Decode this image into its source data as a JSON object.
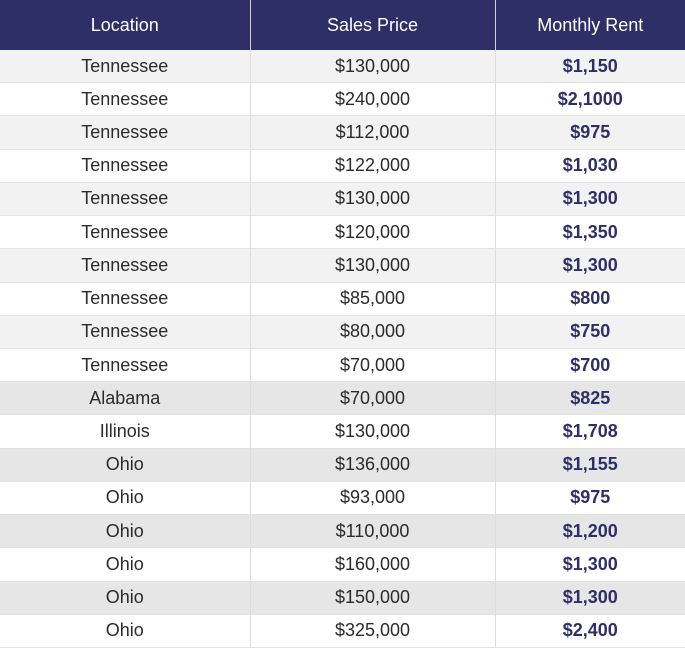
{
  "headers": [
    "Location",
    "Sales Price",
    "Monthly Rent"
  ],
  "rows": [
    {
      "location": "Tennessee",
      "price": "$130,000",
      "rent": "$1,150"
    },
    {
      "location": "Tennessee",
      "price": "$240,000",
      "rent": "$2,1000"
    },
    {
      "location": "Tennessee",
      "price": "$112,000",
      "rent": "$975"
    },
    {
      "location": "Tennessee",
      "price": "$122,000",
      "rent": "$1,030"
    },
    {
      "location": "Tennessee",
      "price": "$130,000",
      "rent": "$1,300"
    },
    {
      "location": "Tennessee",
      "price": "$120,000",
      "rent": "$1,350"
    },
    {
      "location": "Tennessee",
      "price": "$130,000",
      "rent": "$1,300"
    },
    {
      "location": "Tennessee",
      "price": "$85,000",
      "rent": "$800"
    },
    {
      "location": "Tennessee",
      "price": "$80,000",
      "rent": "$750"
    },
    {
      "location": "Tennessee",
      "price": "$70,000",
      "rent": "$700"
    },
    {
      "location": "Alabama",
      "price": "$70,000",
      "rent": "$825"
    },
    {
      "location": "Illinois",
      "price": "$130,000",
      "rent": "$1,708"
    },
    {
      "location": "Ohio",
      "price": "$136,000",
      "rent": "$1,155"
    },
    {
      "location": "Ohio",
      "price": "$93,000",
      "rent": "$975"
    },
    {
      "location": "Ohio",
      "price": "$110,000",
      "rent": "$1,200"
    },
    {
      "location": "Ohio",
      "price": "$160,000",
      "rent": "$1,300"
    },
    {
      "location": "Ohio",
      "price": "$150,000",
      "rent": "$1,300"
    },
    {
      "location": "Ohio",
      "price": "$325,000",
      "rent": "$2,400"
    }
  ],
  "colors": {
    "header_bg": "#2f2f68",
    "header_text": "#ffffff",
    "rent_text": "#2f2f68",
    "row_alt": "#f2f2f2",
    "row_dark": "#e6e6e6",
    "row_plain": "#ffffff"
  }
}
